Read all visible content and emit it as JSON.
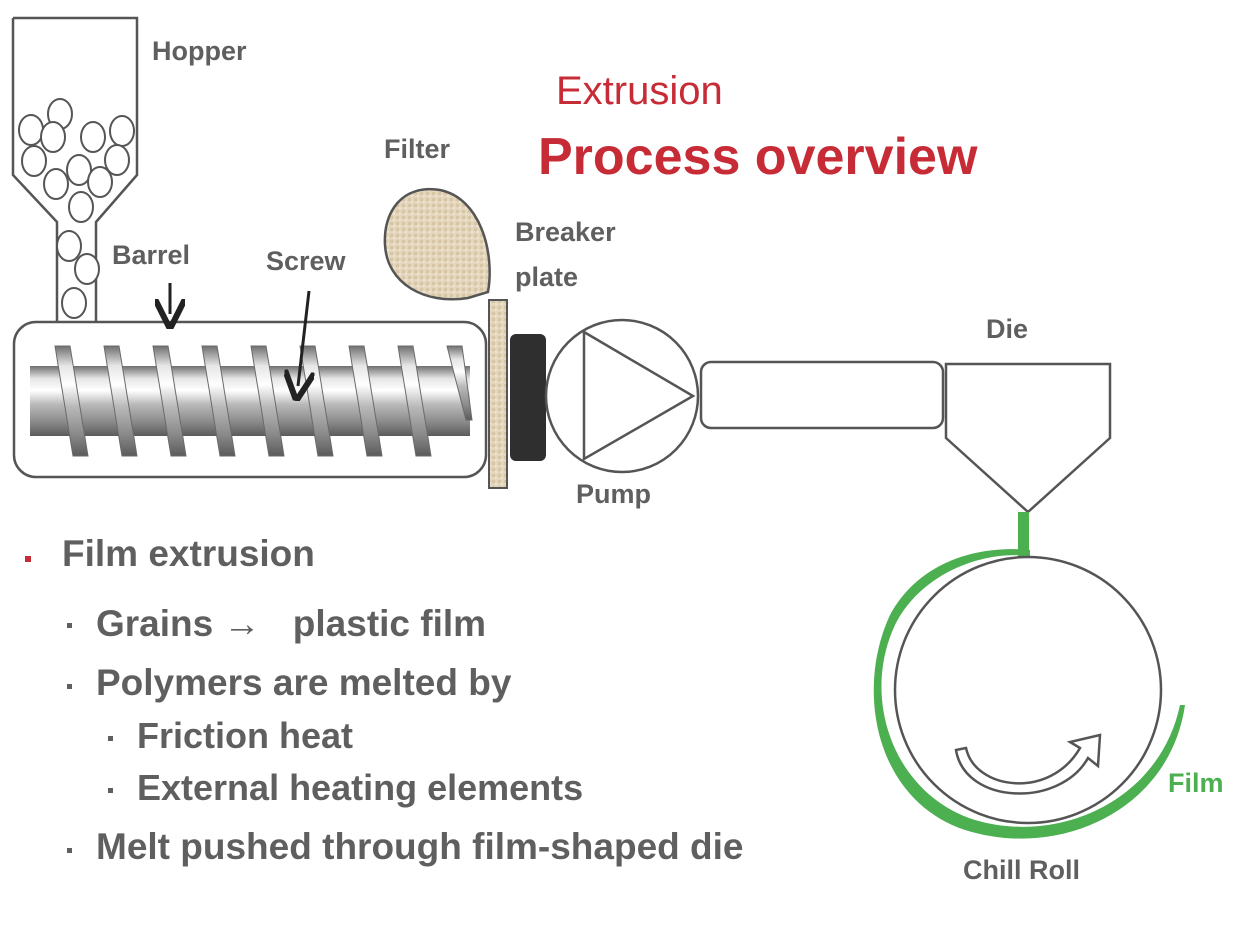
{
  "title": {
    "small": "Extrusion",
    "large": "Process overview"
  },
  "labels": {
    "hopper": "Hopper",
    "barrel": "Barrel",
    "screw": "Screw",
    "filter": "Filter",
    "breaker_line1": "Breaker",
    "breaker_line2": "plate",
    "pump": "Pump",
    "die": "Die",
    "film": "Film",
    "chill_roll": "Chill Roll"
  },
  "bullets": {
    "main": "Film extrusion",
    "grains": "Grains",
    "arrow": "→",
    "plastic_film": "plastic film",
    "polymers": "Polymers are melted by",
    "friction": "Friction heat",
    "external": "External heating elements",
    "melt": "Melt pushed through film-shaped die"
  },
  "colors": {
    "accent_red": "#c62b36",
    "film_green": "#4caf50",
    "text_gray": "#5f5f5f",
    "outline": "#555555"
  }
}
